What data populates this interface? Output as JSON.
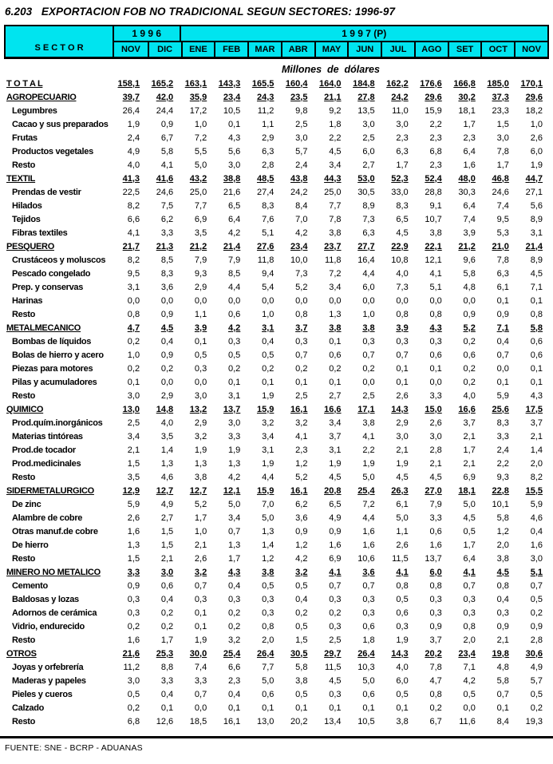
{
  "title": "6.203   EXPORTACION FOB NO TRADICIONAL SEGUN SECTORES: 1996-97",
  "header": {
    "sector_label": "S E C T O R",
    "groups": [
      {
        "label": "1 9 9 6",
        "span": 2
      },
      {
        "label": "1 9 9 7 (P)",
        "span": 11
      }
    ],
    "months": [
      "NOV",
      "DIC",
      "ENE",
      "FEB",
      "MAR",
      "ABR",
      "MAY",
      "JUN",
      "JUL",
      "AGO",
      "SET",
      "OCT",
      "NOV"
    ]
  },
  "units_label": "Millones  de  dólares",
  "rows": [
    {
      "label": "T O T A L",
      "style": "total",
      "values": [
        "158,1",
        "165,2",
        "163,1",
        "143,3",
        "165,5",
        "160,4",
        "164,0",
        "184,8",
        "162,2",
        "176,6",
        "166,8",
        "185,0",
        "170,1"
      ]
    },
    {
      "label": "AGROPECUARIO",
      "style": "section",
      "values": [
        "39,7",
        "42,0",
        "35,9",
        "23,4",
        "24,3",
        "23,5",
        "21,1",
        "27,8",
        "24,2",
        "29,6",
        "30,2",
        "37,3",
        "29,6"
      ]
    },
    {
      "label": "Legumbres",
      "style": "item",
      "values": [
        "26,4",
        "24,4",
        "17,2",
        "10,5",
        "11,2",
        "9,8",
        "9,2",
        "13,5",
        "11,0",
        "15,9",
        "18,1",
        "23,3",
        "18,2"
      ]
    },
    {
      "label": "Cacao y sus preparados",
      "style": "item",
      "values": [
        "1,9",
        "0,9",
        "1,0",
        "0,1",
        "1,1",
        "2,5",
        "1,8",
        "3,0",
        "3,0",
        "2,2",
        "1,7",
        "1,5",
        "1,0"
      ]
    },
    {
      "label": "Frutas",
      "style": "item",
      "values": [
        "2,4",
        "6,7",
        "7,2",
        "4,3",
        "2,9",
        "3,0",
        "2,2",
        "2,5",
        "2,3",
        "2,3",
        "2,3",
        "3,0",
        "2,6"
      ]
    },
    {
      "label": "Productos vegetales",
      "style": "item",
      "values": [
        "4,9",
        "5,8",
        "5,5",
        "5,6",
        "6,3",
        "5,7",
        "4,5",
        "6,0",
        "6,3",
        "6,8",
        "6,4",
        "7,8",
        "6,0"
      ]
    },
    {
      "label": "Resto",
      "style": "item",
      "values": [
        "4,0",
        "4,1",
        "5,0",
        "3,0",
        "2,8",
        "2,4",
        "3,4",
        "2,7",
        "1,7",
        "2,3",
        "1,6",
        "1,7",
        "1,9"
      ]
    },
    {
      "label": "TEXTIL",
      "style": "section",
      "values": [
        "41,3",
        "41,6",
        "43,2",
        "38,8",
        "48,5",
        "43,8",
        "44,3",
        "53,0",
        "52,3",
        "52,4",
        "48,0",
        "46,8",
        "44,7"
      ]
    },
    {
      "label": "Prendas de vestir",
      "style": "item",
      "values": [
        "22,5",
        "24,6",
        "25,0",
        "21,6",
        "27,4",
        "24,2",
        "25,0",
        "30,5",
        "33,0",
        "28,8",
        "30,3",
        "24,6",
        "27,1"
      ]
    },
    {
      "label": "Hilados",
      "style": "item",
      "values": [
        "8,2",
        "7,5",
        "7,7",
        "6,5",
        "8,3",
        "8,4",
        "7,7",
        "8,9",
        "8,3",
        "9,1",
        "6,4",
        "7,4",
        "5,6"
      ]
    },
    {
      "label": "Tejidos",
      "style": "item",
      "values": [
        "6,6",
        "6,2",
        "6,9",
        "6,4",
        "7,6",
        "7,0",
        "7,8",
        "7,3",
        "6,5",
        "10,7",
        "7,4",
        "9,5",
        "8,9"
      ]
    },
    {
      "label": "Fibras textiles",
      "style": "item",
      "values": [
        "4,1",
        "3,3",
        "3,5",
        "4,2",
        "5,1",
        "4,2",
        "3,8",
        "6,3",
        "4,5",
        "3,8",
        "3,9",
        "5,3",
        "3,1"
      ]
    },
    {
      "label": "PESQUERO",
      "style": "section",
      "values": [
        "21,7",
        "21,3",
        "21,2",
        "21,4",
        "27,6",
        "23,4",
        "23,7",
        "27,7",
        "22,9",
        "22,1",
        "21,2",
        "21,0",
        "21,4"
      ]
    },
    {
      "label": "Crustáceos y moluscos",
      "style": "item",
      "values": [
        "8,2",
        "8,5",
        "7,9",
        "7,9",
        "11,8",
        "10,0",
        "11,8",
        "16,4",
        "10,8",
        "12,1",
        "9,6",
        "7,8",
        "8,9"
      ]
    },
    {
      "label": "Pescado congelado",
      "style": "item",
      "values": [
        "9,5",
        "8,3",
        "9,3",
        "8,5",
        "9,4",
        "7,3",
        "7,2",
        "4,4",
        "4,0",
        "4,1",
        "5,8",
        "6,3",
        "4,5"
      ]
    },
    {
      "label": "Prep. y conservas",
      "style": "item",
      "values": [
        "3,1",
        "3,6",
        "2,9",
        "4,4",
        "5,4",
        "5,2",
        "3,4",
        "6,0",
        "7,3",
        "5,1",
        "4,8",
        "6,1",
        "7,1"
      ]
    },
    {
      "label": "Harinas",
      "style": "item",
      "values": [
        "0,0",
        "0,0",
        "0,0",
        "0,0",
        "0,0",
        "0,0",
        "0,0",
        "0,0",
        "0,0",
        "0,0",
        "0,0",
        "0,1",
        "0,1"
      ]
    },
    {
      "label": "Resto",
      "style": "item",
      "values": [
        "0,8",
        "0,9",
        "1,1",
        "0,6",
        "1,0",
        "0,8",
        "1,3",
        "1,0",
        "0,8",
        "0,8",
        "0,9",
        "0,9",
        "0,8"
      ]
    },
    {
      "label": "METALMECANICO",
      "style": "section",
      "values": [
        "4,7",
        "4,5",
        "3,9",
        "4,2",
        "3,1",
        "3,7",
        "3,8",
        "3,8",
        "3,9",
        "4,3",
        "5,2",
        "7,1",
        "5,8"
      ]
    },
    {
      "label": "Bombas de líquidos",
      "style": "item",
      "values": [
        "0,2",
        "0,4",
        "0,1",
        "0,3",
        "0,4",
        "0,3",
        "0,1",
        "0,3",
        "0,3",
        "0,3",
        "0,2",
        "0,4",
        "0,6"
      ]
    },
    {
      "label": "Bolas de hierro y acero",
      "style": "item",
      "values": [
        "1,0",
        "0,9",
        "0,5",
        "0,5",
        "0,5",
        "0,7",
        "0,6",
        "0,7",
        "0,7",
        "0,6",
        "0,6",
        "0,7",
        "0,6"
      ]
    },
    {
      "label": "Piezas para motores",
      "style": "item",
      "values": [
        "0,2",
        "0,2",
        "0,3",
        "0,2",
        "0,2",
        "0,2",
        "0,2",
        "0,2",
        "0,1",
        "0,1",
        "0,2",
        "0,0",
        "0,1"
      ]
    },
    {
      "label": "Pilas y acumuladores",
      "style": "item",
      "values": [
        "0,1",
        "0,0",
        "0,0",
        "0,1",
        "0,1",
        "0,1",
        "0,1",
        "0,0",
        "0,1",
        "0,0",
        "0,2",
        "0,1",
        "0,1"
      ]
    },
    {
      "label": "Resto",
      "style": "item",
      "values": [
        "3,0",
        "2,9",
        "3,0",
        "3,1",
        "1,9",
        "2,5",
        "2,7",
        "2,5",
        "2,6",
        "3,3",
        "4,0",
        "5,9",
        "4,3"
      ]
    },
    {
      "label": "QUIMICO",
      "style": "section",
      "values": [
        "13,0",
        "14,8",
        "13,2",
        "13,7",
        "15,9",
        "16,1",
        "16,6",
        "17,1",
        "14,3",
        "15,0",
        "16,6",
        "25,6",
        "17,5"
      ]
    },
    {
      "label": "Prod.quím.inorgánicos",
      "style": "item",
      "values": [
        "2,5",
        "4,0",
        "2,9",
        "3,0",
        "3,2",
        "3,2",
        "3,4",
        "3,8",
        "2,9",
        "2,6",
        "3,7",
        "8,3",
        "3,7"
      ]
    },
    {
      "label": "Materias tintóreas",
      "style": "item",
      "values": [
        "3,4",
        "3,5",
        "3,2",
        "3,3",
        "3,4",
        "4,1",
        "3,7",
        "4,1",
        "3,0",
        "3,0",
        "2,1",
        "3,3",
        "2,1"
      ]
    },
    {
      "label": "Prod.de tocador",
      "style": "item",
      "values": [
        "2,1",
        "1,4",
        "1,9",
        "1,9",
        "3,1",
        "2,3",
        "3,1",
        "2,2",
        "2,1",
        "2,8",
        "1,7",
        "2,4",
        "1,4"
      ]
    },
    {
      "label": "Prod.medicinales",
      "style": "item",
      "values": [
        "1,5",
        "1,3",
        "1,3",
        "1,3",
        "1,9",
        "1,2",
        "1,9",
        "1,9",
        "1,9",
        "2,1",
        "2,1",
        "2,2",
        "2,0"
      ]
    },
    {
      "label": "Resto",
      "style": "item",
      "values": [
        "3,5",
        "4,6",
        "3,8",
        "4,2",
        "4,4",
        "5,2",
        "4,5",
        "5,0",
        "4,5",
        "4,5",
        "6,9",
        "9,3",
        "8,2"
      ]
    },
    {
      "label": "SIDERMETALURGICO",
      "style": "section",
      "values": [
        "12,9",
        "12,7",
        "12,7",
        "12,1",
        "15,9",
        "16,1",
        "20,8",
        "25,4",
        "26,3",
        "27,0",
        "18,1",
        "22,8",
        "15,5"
      ]
    },
    {
      "label": "De zinc",
      "style": "item",
      "values": [
        "5,9",
        "4,9",
        "5,2",
        "5,0",
        "7,0",
        "6,2",
        "6,5",
        "7,2",
        "6,1",
        "7,9",
        "5,0",
        "10,1",
        "5,9"
      ]
    },
    {
      "label": "Alambre de cobre",
      "style": "item",
      "values": [
        "2,6",
        "2,7",
        "1,7",
        "3,4",
        "5,0",
        "3,6",
        "4,9",
        "4,4",
        "5,0",
        "3,3",
        "4,5",
        "5,8",
        "4,6"
      ]
    },
    {
      "label": "Otras manuf.de cobre",
      "style": "item",
      "values": [
        "1,6",
        "1,5",
        "1,0",
        "0,7",
        "1,3",
        "0,9",
        "0,9",
        "1,6",
        "1,1",
        "0,6",
        "0,5",
        "1,2",
        "0,4"
      ]
    },
    {
      "label": "De hierro",
      "style": "item",
      "values": [
        "1,3",
        "1,5",
        "2,1",
        "1,3",
        "1,4",
        "1,2",
        "1,6",
        "1,6",
        "2,6",
        "1,6",
        "1,7",
        "2,0",
        "1,6"
      ]
    },
    {
      "label": "Resto",
      "style": "item",
      "values": [
        "1,5",
        "2,1",
        "2,6",
        "1,7",
        "1,2",
        "4,2",
        "6,9",
        "10,6",
        "11,5",
        "13,7",
        "6,4",
        "3,8",
        "3,0"
      ]
    },
    {
      "label": "MINERO NO METALICO",
      "style": "section",
      "values": [
        "3,3",
        "3,0",
        "3,2",
        "4,3",
        "3,8",
        "3,2",
        "4,1",
        "3,6",
        "4,1",
        "6,0",
        "4,1",
        "4,5",
        "5,1"
      ]
    },
    {
      "label": "Cemento",
      "style": "item",
      "values": [
        "0,9",
        "0,6",
        "0,7",
        "0,4",
        "0,5",
        "0,5",
        "0,7",
        "0,7",
        "0,8",
        "0,8",
        "0,7",
        "0,8",
        "0,7"
      ]
    },
    {
      "label": "Baldosas y lozas",
      "style": "item",
      "values": [
        "0,3",
        "0,4",
        "0,3",
        "0,3",
        "0,3",
        "0,4",
        "0,3",
        "0,3",
        "0,5",
        "0,3",
        "0,3",
        "0,4",
        "0,5"
      ]
    },
    {
      "label": "Adornos de cerámica",
      "style": "item",
      "values": [
        "0,3",
        "0,2",
        "0,1",
        "0,2",
        "0,3",
        "0,2",
        "0,2",
        "0,3",
        "0,6",
        "0,3",
        "0,3",
        "0,3",
        "0,2"
      ]
    },
    {
      "label": "Vidrio, endurecido",
      "style": "item",
      "values": [
        "0,2",
        "0,2",
        "0,1",
        "0,2",
        "0,8",
        "0,5",
        "0,3",
        "0,6",
        "0,3",
        "0,9",
        "0,8",
        "0,9",
        "0,9"
      ]
    },
    {
      "label": "Resto",
      "style": "item",
      "values": [
        "1,6",
        "1,7",
        "1,9",
        "3,2",
        "2,0",
        "1,5",
        "2,5",
        "1,8",
        "1,9",
        "3,7",
        "2,0",
        "2,1",
        "2,8"
      ]
    },
    {
      "label": "OTROS",
      "style": "section",
      "values": [
        "21,6",
        "25,3",
        "30,0",
        "25,4",
        "26,4",
        "30,5",
        "29,7",
        "26,4",
        "14,3",
        "20,2",
        "23,4",
        "19,8",
        "30,6"
      ]
    },
    {
      "label": "Joyas y orfebrería",
      "style": "item",
      "values": [
        "11,2",
        "8,8",
        "7,4",
        "6,6",
        "7,7",
        "5,8",
        "11,5",
        "10,3",
        "4,0",
        "7,8",
        "7,1",
        "4,8",
        "4,9"
      ]
    },
    {
      "label": "Maderas y papeles",
      "style": "item",
      "values": [
        "3,0",
        "3,3",
        "3,3",
        "2,3",
        "5,0",
        "3,8",
        "4,5",
        "5,0",
        "6,0",
        "4,7",
        "4,2",
        "5,8",
        "5,7"
      ]
    },
    {
      "label": "Pieles y cueros",
      "style": "item",
      "values": [
        "0,5",
        "0,4",
        "0,7",
        "0,4",
        "0,6",
        "0,5",
        "0,3",
        "0,6",
        "0,5",
        "0,8",
        "0,5",
        "0,7",
        "0,5"
      ]
    },
    {
      "label": "Calzado",
      "style": "item",
      "values": [
        "0,2",
        "0,1",
        "0,0",
        "0,1",
        "0,1",
        "0,1",
        "0,1",
        "0,1",
        "0,1",
        "0,2",
        "0,0",
        "0,1",
        "0,2"
      ]
    },
    {
      "label": "Resto",
      "style": "item",
      "values": [
        "6,8",
        "12,6",
        "18,5",
        "16,1",
        "13,0",
        "20,2",
        "13,4",
        "10,5",
        "3,8",
        "6,7",
        "11,6",
        "8,4",
        "19,3"
      ]
    }
  ],
  "footer": {
    "source": "FUENTE: SNE - BCRP - ADUANAS"
  },
  "colors": {
    "header_bg": "#00e4ef",
    "border": "#000000",
    "text": "#000000",
    "page_bg": "#ffffff"
  }
}
